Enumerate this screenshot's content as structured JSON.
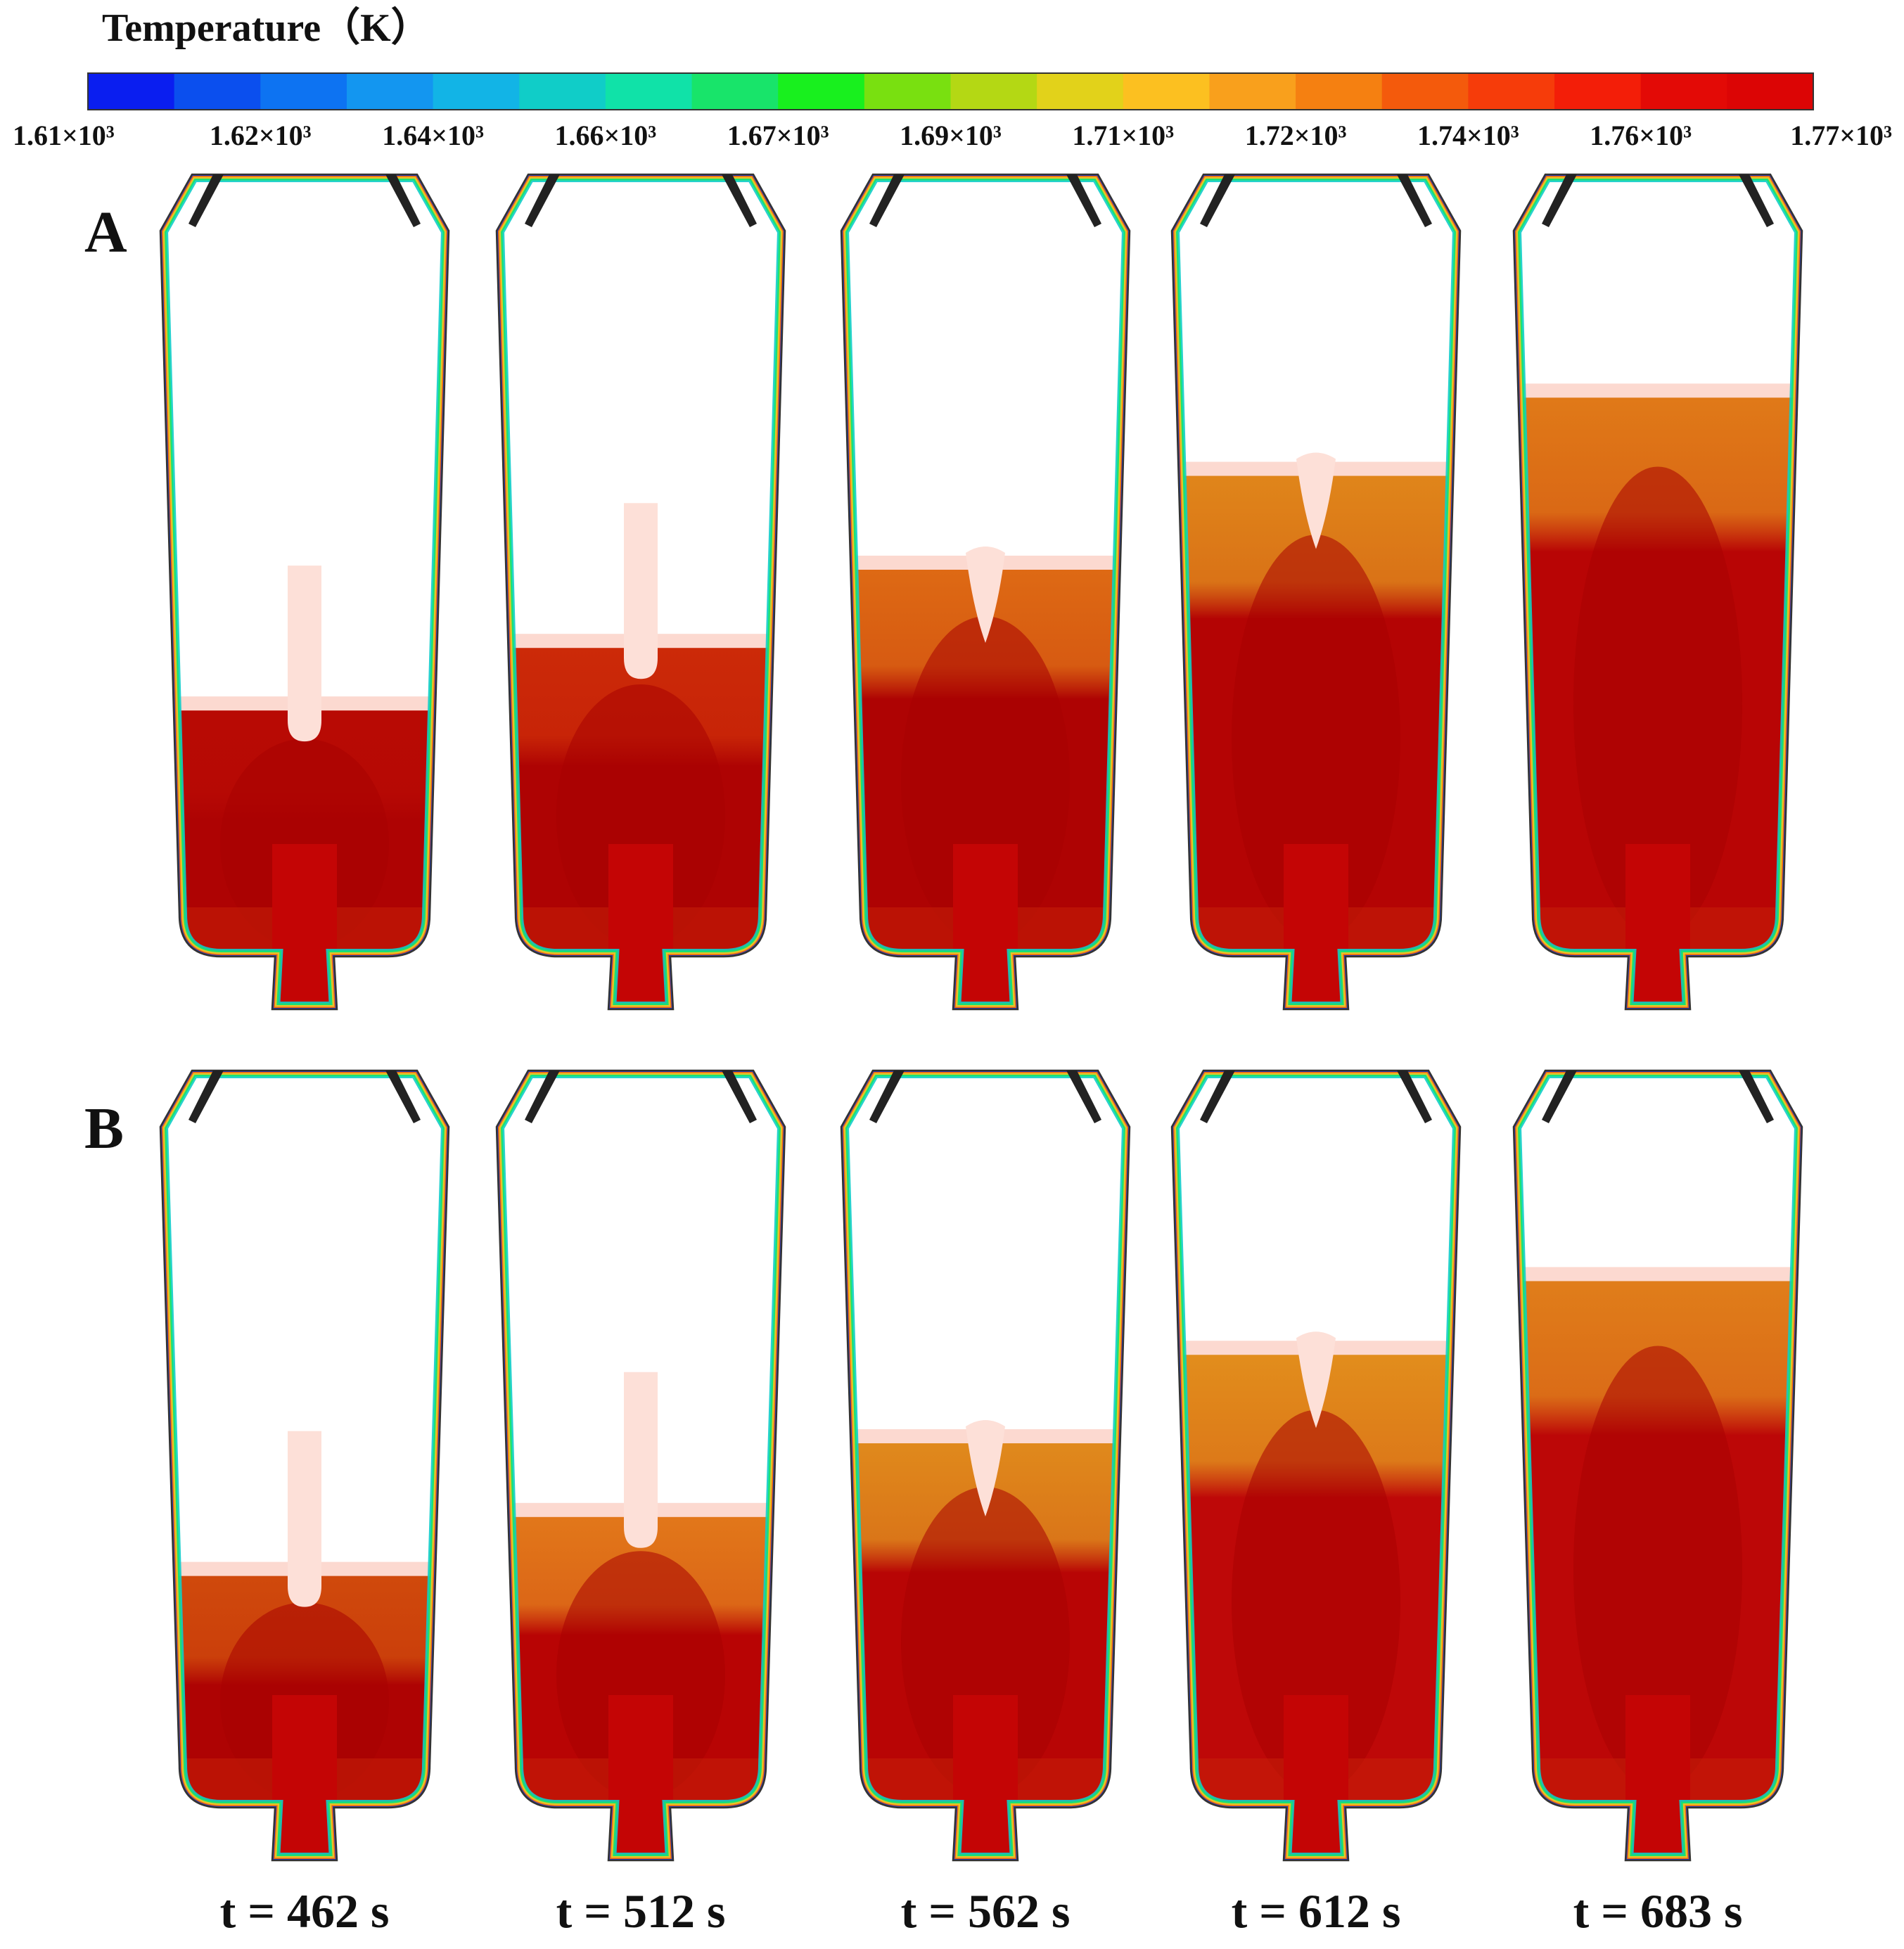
{
  "colorbar": {
    "title": "Temperature（K）",
    "colors": [
      "#0a1ef0",
      "#0b4fee",
      "#0d73f2",
      "#1396f0",
      "#12b4e6",
      "#10cdc8",
      "#10e2a8",
      "#18e46a",
      "#18f01e",
      "#79e010",
      "#b4d814",
      "#e2d21a",
      "#fcc020",
      "#f9a01c",
      "#f58011",
      "#f45a0c",
      "#f63c0a",
      "#f31e08",
      "#e30a06",
      "#dc0505"
    ],
    "tick_labels": [
      "1.61×10³",
      "1.62×10³",
      "1.64×10³",
      "1.66×10³",
      "1.67×10³",
      "1.69×10³",
      "1.71×10³",
      "1.72×10³",
      "1.74×10³",
      "1.76×10³",
      "1.77×10³"
    ]
  },
  "rows": [
    {
      "label": "A",
      "panels": [
        {
          "fill": 0.32,
          "probe": "rod",
          "top": "#b80a04",
          "bulk": "#ae0303"
        },
        {
          "fill": 0.4,
          "probe": "rod",
          "top": "#cc2a08",
          "bulk": "#ae0303"
        },
        {
          "fill": 0.5,
          "probe": "blob",
          "top": "#de6a14",
          "bulk": "#ae0303"
        },
        {
          "fill": 0.62,
          "probe": "blob",
          "top": "#e0861a",
          "bulk": "#b40404"
        },
        {
          "fill": 0.72,
          "probe": "none",
          "top": "#e07a18",
          "bulk": "#b80505"
        }
      ]
    },
    {
      "label": "B",
      "panels": [
        {
          "fill": 0.32,
          "probe": "rod",
          "top": "#d04a0c",
          "bulk": "#ae0303"
        },
        {
          "fill": 0.4,
          "probe": "rod",
          "top": "#e2781a",
          "bulk": "#b80404"
        },
        {
          "fill": 0.5,
          "probe": "blob",
          "top": "#e08a1c",
          "bulk": "#b80505"
        },
        {
          "fill": 0.62,
          "probe": "blob",
          "top": "#e28e1c",
          "bulk": "#be0808"
        },
        {
          "fill": 0.72,
          "probe": "none",
          "top": "#e07e1a",
          "bulk": "#bc0707"
        }
      ]
    }
  ],
  "time_labels": [
    "t = 462 s",
    "t = 512 s",
    "t = 562 s",
    "t = 612 s",
    "t = 683 s"
  ]
}
